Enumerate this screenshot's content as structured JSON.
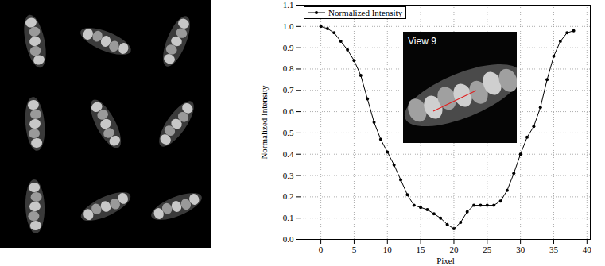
{
  "chart_data": {
    "type": "line",
    "x_label": "Pixel",
    "y_label": "Normalized Intensity",
    "x": [
      0,
      1,
      2,
      3,
      4,
      5,
      6,
      7,
      8,
      9,
      10,
      11,
      12,
      13,
      14,
      15,
      16,
      17,
      18,
      19,
      20,
      21,
      22,
      23,
      24,
      25,
      26,
      27,
      28,
      29,
      30,
      31,
      32,
      33,
      34,
      35,
      36,
      37,
      38
    ],
    "series": [
      {
        "name": "Normalized Intensity",
        "color": "#000000",
        "marker": "circle",
        "line_style": "solid",
        "values": [
          1.0,
          0.99,
          0.97,
          0.93,
          0.89,
          0.84,
          0.77,
          0.66,
          0.55,
          0.47,
          0.41,
          0.35,
          0.28,
          0.21,
          0.16,
          0.15,
          0.14,
          0.12,
          0.1,
          0.07,
          0.05,
          0.08,
          0.13,
          0.16,
          0.16,
          0.16,
          0.16,
          0.18,
          0.23,
          0.31,
          0.4,
          0.48,
          0.53,
          0.62,
          0.75,
          0.86,
          0.93,
          0.97,
          0.98
        ]
      }
    ],
    "xlim": [
      -3,
      40.5
    ],
    "ylim": [
      0,
      1.1
    ],
    "xticks": [
      0,
      5,
      10,
      15,
      20,
      25,
      30,
      35,
      40
    ],
    "yticks": [
      {
        "value": 0,
        "label": "0.0"
      },
      {
        "value": 0.1,
        "label": "0.1"
      },
      {
        "value": 0.2,
        "label": "0.2"
      },
      {
        "value": 0.3,
        "label": "0.3"
      },
      {
        "value": 0.4,
        "label": "0.4"
      },
      {
        "value": 0.5,
        "label": "0.5"
      },
      {
        "value": 0.6,
        "label": "0.6"
      },
      {
        "value": 0.7,
        "label": "0.7"
      },
      {
        "value": 0.8,
        "label": "0.8"
      },
      {
        "value": 0.9,
        "label": "0.9"
      },
      {
        "value": 1,
        "label": "1.0"
      },
      {
        "value": 1.1,
        "label": "1.1"
      }
    ],
    "grid": true,
    "legend": "top-left",
    "annotations": [
      "View 9"
    ]
  }
}
